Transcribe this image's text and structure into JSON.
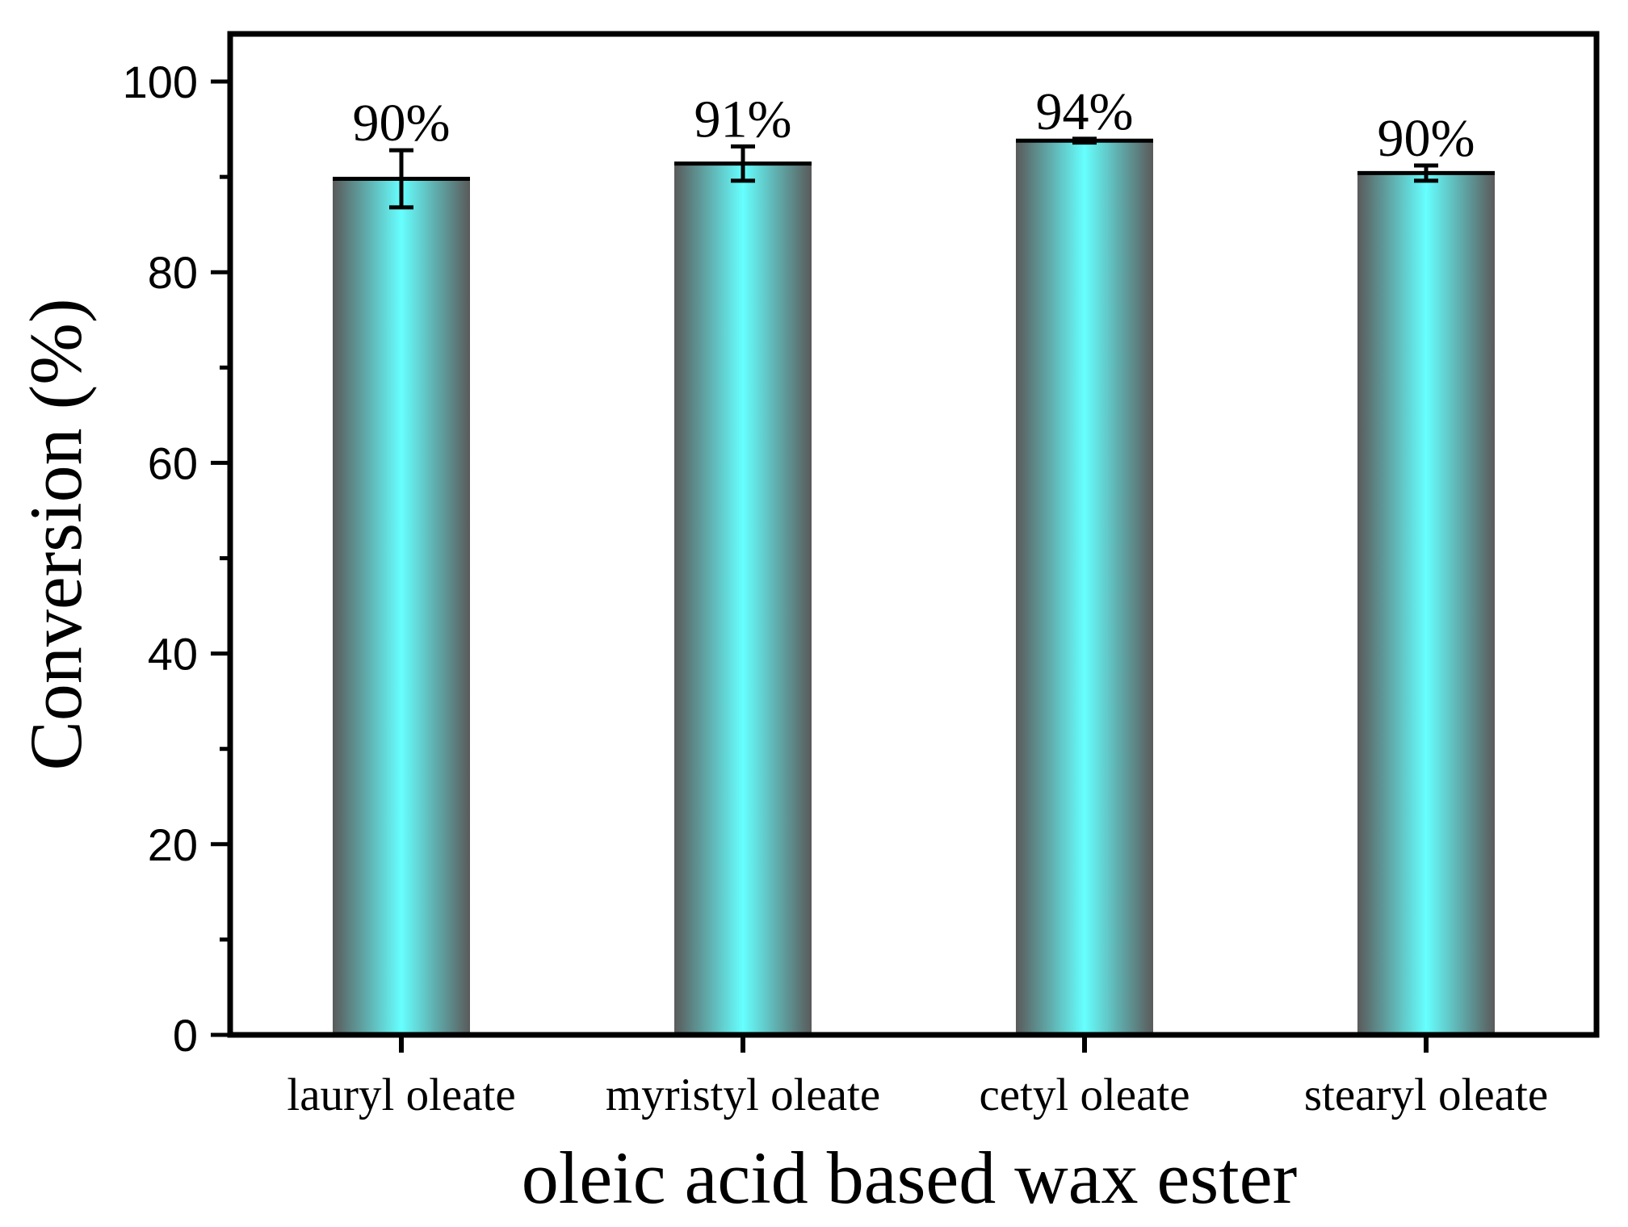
{
  "chart_data": {
    "type": "bar",
    "xlabel": "oleic acid based wax ester",
    "ylabel": "Conversion  (%)",
    "ylim": [
      0,
      105
    ],
    "yticks": [
      0,
      20,
      40,
      60,
      80,
      100
    ],
    "y_minor_step": 10,
    "categories": [
      "lauryl oleate",
      "myristyl oleate",
      "cetyl oleate",
      "stearyl oleate"
    ],
    "values": [
      89.8,
      91.4,
      93.8,
      90.4
    ],
    "errors": [
      3.0,
      1.8,
      0.2,
      0.8
    ],
    "data_labels": [
      "90%",
      "91%",
      "94%",
      "90%"
    ],
    "colors": {
      "bar_center": "#66ffff",
      "bar_edge": "#5a5a5a",
      "frame": "#000000"
    }
  }
}
